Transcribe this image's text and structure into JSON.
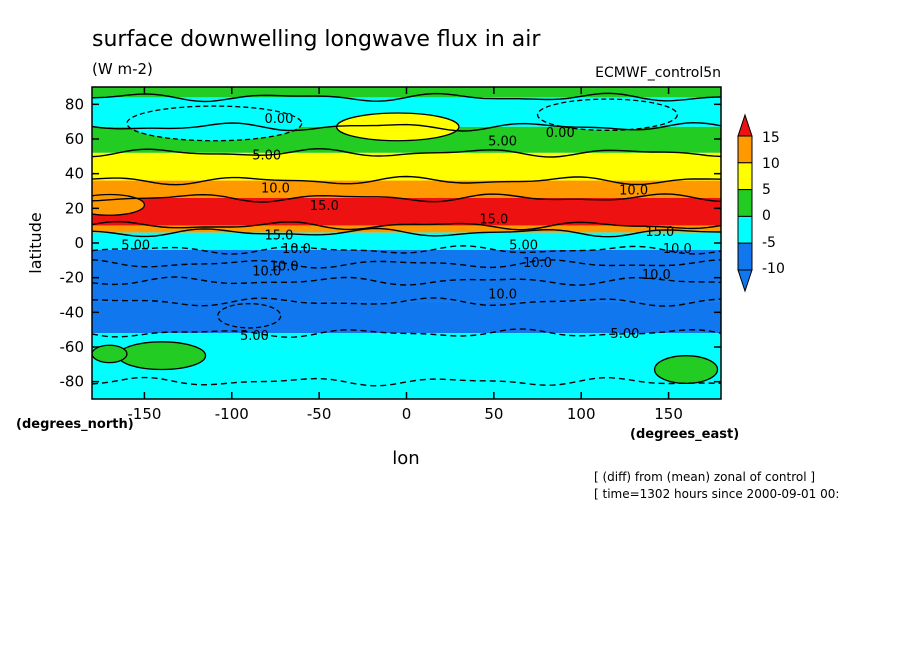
{
  "chart_data": {
    "type": "heatmap",
    "title": "surface downwelling longwave flux in air",
    "units": "(W m-2)",
    "dataset": "ECMWF_control5n",
    "xlabel": "lon",
    "ylabel": "latitude",
    "x_units": "(degrees_east)",
    "y_units": "(degrees_north)",
    "xlim": [
      -180,
      180
    ],
    "ylim": [
      -90,
      90
    ],
    "x_ticks": [
      -150,
      -100,
      -50,
      0,
      50,
      100,
      150
    ],
    "y_ticks": [
      80,
      60,
      40,
      20,
      0,
      -20,
      -40,
      -60,
      -80
    ],
    "x_tick_labels": [
      "-150",
      "-100",
      "-50",
      "0",
      "50",
      "100",
      "150"
    ],
    "y_tick_labels": [
      "80",
      "60",
      "40",
      "20",
      "0",
      "-20",
      "-40",
      "-60",
      "-80"
    ],
    "colorbar": {
      "levels": [
        15,
        10,
        5,
        0,
        -5,
        -10
      ],
      "labels": [
        "15",
        "10",
        "5",
        "0",
        "-5",
        "-10"
      ],
      "colors": [
        "#ee1111",
        "#ff9900",
        "#ffff00",
        "#22cc22",
        "#00ffff",
        "#1177ee"
      ]
    },
    "bands": [
      {
        "lat_from": 90,
        "lat_to": 84,
        "value": 0
      },
      {
        "lat_from": 84,
        "lat_to": 67,
        "value": -2
      },
      {
        "lat_from": 67,
        "lat_to": 52,
        "value": 2
      },
      {
        "lat_from": 52,
        "lat_to": 36,
        "value": 7
      },
      {
        "lat_from": 36,
        "lat_to": 26,
        "value": 12
      },
      {
        "lat_from": 26,
        "lat_to": 10,
        "value": 17
      },
      {
        "lat_from": 10,
        "lat_to": 6,
        "value": 12
      },
      {
        "lat_from": 6,
        "lat_to": -4,
        "value": -2
      },
      {
        "lat_from": -4,
        "lat_to": -34,
        "value": -12
      },
      {
        "lat_from": -34,
        "lat_to": -52,
        "value": -7
      },
      {
        "lat_from": -52,
        "lat_to": -90,
        "value": -2
      }
    ],
    "regions": [
      {
        "lon": -110,
        "lat": 69,
        "rlon": 50,
        "rlat": 10,
        "value": -2
      },
      {
        "lon": 115,
        "lat": 74,
        "rlon": 40,
        "rlat": 9,
        "value": -2
      },
      {
        "lon": -140,
        "lat": -65,
        "rlon": 25,
        "rlat": 8,
        "value": 2
      },
      {
        "lon": 160,
        "lat": -73,
        "rlon": 18,
        "rlat": 8,
        "value": 2
      },
      {
        "lon": -170,
        "lat": -64,
        "rlon": 10,
        "rlat": 5,
        "value": 2
      },
      {
        "lon": -90,
        "lat": -42,
        "rlon": 18,
        "rlat": 7,
        "value": -7
      },
      {
        "lon": -5,
        "lat": 67,
        "rlon": 35,
        "rlat": 8,
        "value": 7
      },
      {
        "lon": -170,
        "lat": 22,
        "rlon": 20,
        "rlat": 6,
        "value": 12
      }
    ],
    "contours": [
      {
        "lat": 84,
        "dashed": false
      },
      {
        "lat": 67,
        "dashed": false
      },
      {
        "lat": 52,
        "dashed": false
      },
      {
        "lat": 36,
        "dashed": false
      },
      {
        "lat": 26,
        "dashed": false
      },
      {
        "lat": 10,
        "dashed": false
      },
      {
        "lat": 6,
        "dashed": false
      },
      {
        "lat": -4,
        "dashed": true
      },
      {
        "lat": -12,
        "dashed": true
      },
      {
        "lat": -22,
        "dashed": true
      },
      {
        "lat": -34,
        "dashed": true
      },
      {
        "lat": -52,
        "dashed": true
      },
      {
        "lat": -80,
        "dashed": true
      }
    ],
    "contour_labels": [
      {
        "text": "0.00",
        "lon": -73,
        "lat": 72
      },
      {
        "text": "0.00",
        "lon": 88,
        "lat": 64
      },
      {
        "text": "5.00",
        "lon": 55,
        "lat": 59
      },
      {
        "text": "5.00",
        "lon": -80,
        "lat": 51
      },
      {
        "text": "10.0",
        "lon": -75,
        "lat": 32
      },
      {
        "text": "10.0",
        "lon": 130,
        "lat": 31
      },
      {
        "text": "15.0",
        "lon": -47,
        "lat": 22
      },
      {
        "text": "15.0",
        "lon": 50,
        "lat": 14
      },
      {
        "text": "15.0",
        "lon": 145,
        "lat": 7
      },
      {
        "text": "15.0",
        "lon": -73,
        "lat": 5
      },
      {
        "text": "5.00",
        "lon": -155,
        "lat": -1
      },
      {
        "text": "10.0",
        "lon": -63,
        "lat": -3
      },
      {
        "text": "5.00",
        "lon": 67,
        "lat": -1
      },
      {
        "text": "10.0",
        "lon": 155,
        "lat": -3
      },
      {
        "text": "10.0",
        "lon": -70,
        "lat": -13
      },
      {
        "text": "10.0",
        "lon": 75,
        "lat": -11
      },
      {
        "text": "10.0",
        "lon": -80,
        "lat": -16
      },
      {
        "text": "10.0",
        "lon": 143,
        "lat": -18
      },
      {
        "text": "10.0",
        "lon": 55,
        "lat": -29
      },
      {
        "text": "5.00",
        "lon": -87,
        "lat": -53
      },
      {
        "text": "5.00",
        "lon": 125,
        "lat": -52
      }
    ]
  },
  "footer": {
    "line1": "[ (diff) from (mean) zonal of control ]",
    "line2": "[ time=1302 hours since 2000-09-01 00:"
  }
}
